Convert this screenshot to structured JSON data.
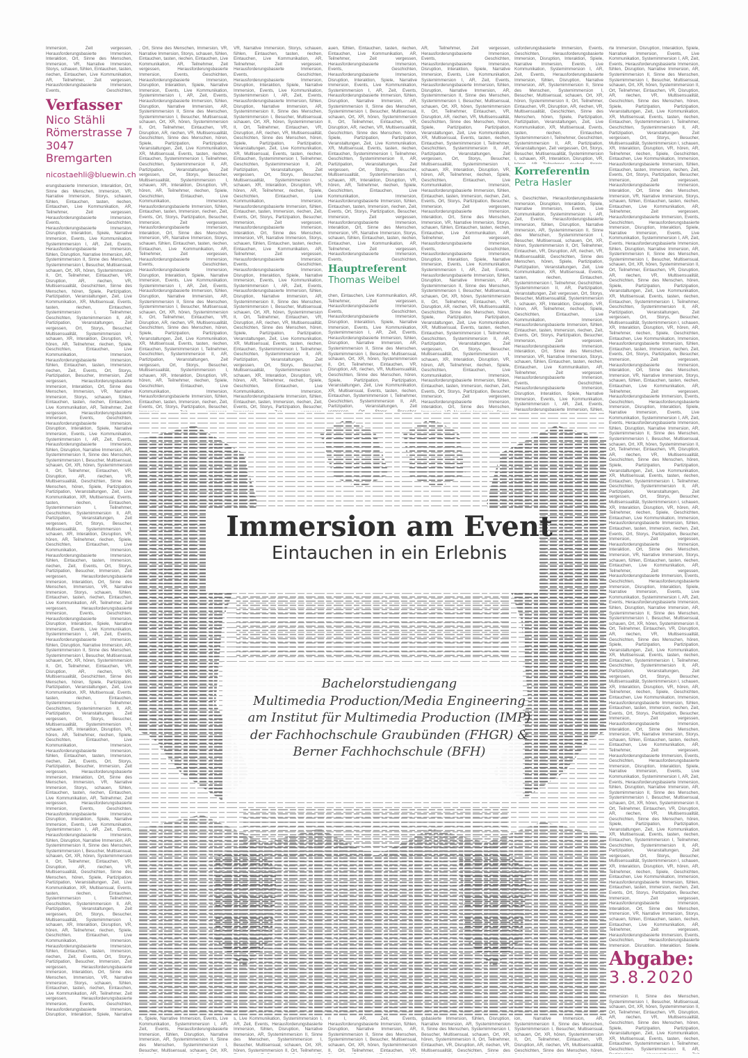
{
  "authors": {
    "verfasser": {
      "role": "Verfasser",
      "lines": [
        "Nico Stähli",
        "Römerstrasse 7",
        "3047 Bremgarten"
      ],
      "email": "nicostaehli@bluewin.ch"
    },
    "hauptreferent": {
      "role": "Hauptreferent",
      "name": "Thomas Weibel"
    },
    "korreferentin": {
      "role": "Korreferentin",
      "name": "Petra Hasler"
    }
  },
  "title": {
    "main": "Immersion am Event",
    "sub": "Eintauchen in ein Erlebnis"
  },
  "study": {
    "lines": [
      "Bachelorstudiengang",
      "Multimedia Production/Media Engineering",
      "am Institut für Multimedia Production (IMP)",
      "der Fachhochschule Graubünden (FHGR) &",
      "Berner Fachhochschule (BFH)"
    ]
  },
  "submission": {
    "label": "Abgabe:",
    "date": "3.8.2020"
  },
  "filler_text": "Immersion, Zeit vergessen, Herausforderungsbasierte Immersion, Interaktion, Ort, Sinne des Menschen, Immersion, VR, Narrative Immersion, Storys, schauen, fühlen, Eintauchen, tasten, riechen, Eintauchen, Live Kommunikation, AR, Teilnehmer, Zeit vergessen, Herausforderungsbasierte Immersion, Events, Geschichten, Herausforderungsbasierte Immersion, Disruption, Interaktion, Spiele, Narrative Immersion, Events, Live Kommunikation, Systemimmersion I, AR, Zeit, Events, Herausforderungsbasierte Immersion, fühlen, Disruption, Narrative Immersion, AR, Systemimmersion II, Sinne des Menschen, Systemimmersion I, Besucher, Multisensual, schauen, Ort, XR, hören, Systemimmersion II, Ort, Teilnehmer, Eintauchen, VR, Disruption, AR, riechen, VR, Multisensualität, Geschichten, Sinne des Menschen, hören, Spiele, Partizipation, Partizipation, Veranstaltungen, Zeit, Live Kommunikation, XR, Multisensual, Events, tasten, riechen, Eintauchen, Systemimmersion I, Teilnehmer, Geschichten, Systemimmersion II, AR, Partizipation, Veranstaltungen, Zeit vergessen, Ort, Storys, Besucher, Multisensualität, Systemimmersion I, schauen, XR, Interaktion, Disruption, VR, hören, AR, Teilnehmer, riechen, Spiele, Geschichten, Eintauchen, Live Kommunikation, Immersion, Herausforderungsbasierte Immersion, fühlen, Eintauchen, tasten, Immersion, riechen, Zeit, Events, Ort, Storys, Partizipation, Besucher, "
}
